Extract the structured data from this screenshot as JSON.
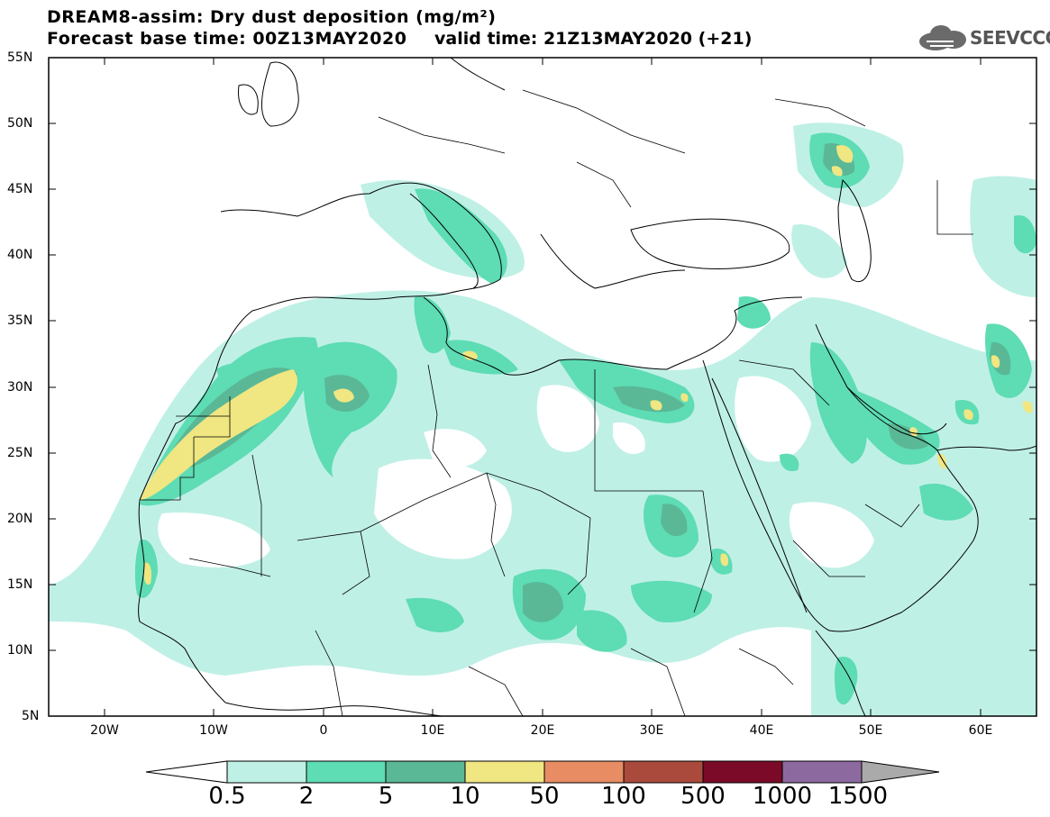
{
  "title": {
    "line1": "DREAM8-assim: Dry dust deposition (mg/m²)",
    "line2": "Forecast base time: 00Z13MAY2020",
    "valid": "valid time: 21Z13MAY2020 (+21)"
  },
  "logo": {
    "text": "SEEVCCC",
    "icon": "cloud-icon"
  },
  "axes": {
    "lat_labels": [
      "55N",
      "50N",
      "45N",
      "40N",
      "35N",
      "30N",
      "25N",
      "20N",
      "15N",
      "10N",
      "5N"
    ],
    "lon_labels": [
      "20W",
      "10W",
      "0",
      "10E",
      "20E",
      "30E",
      "40E",
      "50E",
      "60E"
    ]
  },
  "colors": {
    "level1": "#bff0e6",
    "level2": "#5edcb4",
    "level3": "#5ab896",
    "level4": "#f0e682",
    "level5": "#e88c64",
    "level6": "#aa4a3c",
    "level7": "#7a0a28",
    "level8": "#8c6aa0",
    "over": "#aaaaaa",
    "under": "#ffffff",
    "coast": "#000000"
  },
  "legend": {
    "labels": [
      "0.5",
      "2",
      "5",
      "10",
      "50",
      "100",
      "500",
      "1000",
      "1500"
    ]
  }
}
